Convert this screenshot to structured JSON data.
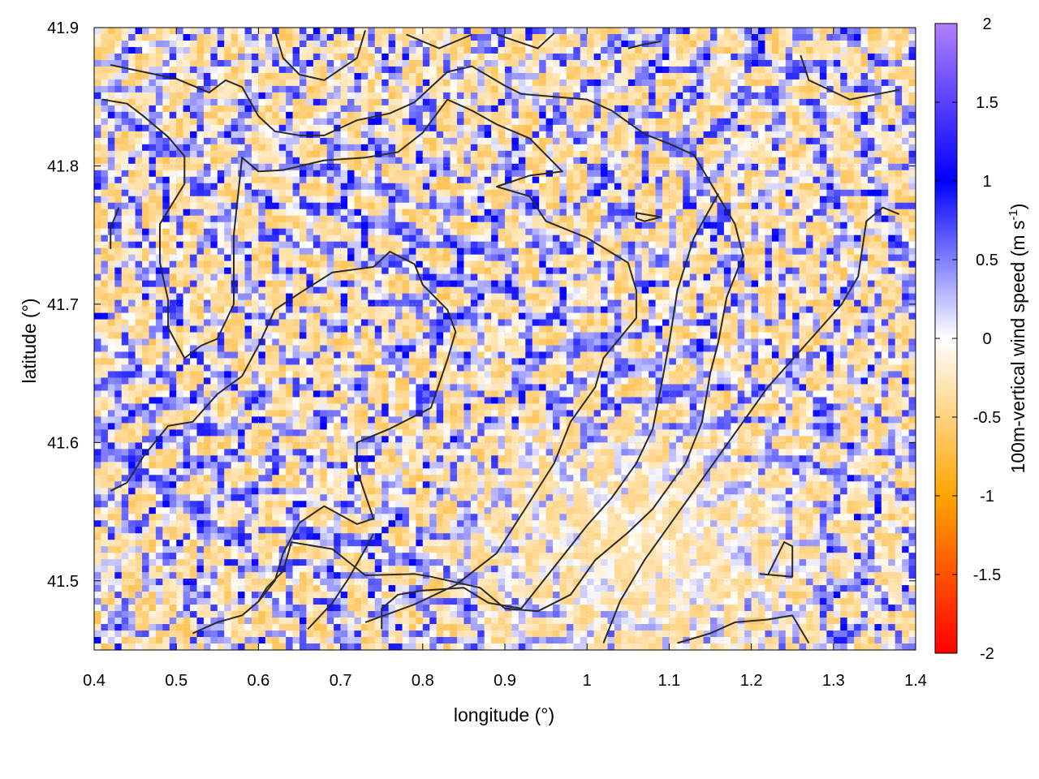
{
  "chart_data": {
    "type": "heatmap",
    "title": "",
    "xlabel": "longitude (°)",
    "ylabel": "latitude (°)",
    "xlim": [
      0.4,
      1.4
    ],
    "ylim": [
      41.45,
      41.9
    ],
    "x_ticks": [
      0.4,
      0.5,
      0.6,
      0.7,
      0.8,
      0.9,
      1.0,
      1.1,
      1.2,
      1.3,
      1.4
    ],
    "x_tick_labels": [
      "0.4",
      "0.5",
      "0.6",
      "0.7",
      "0.8",
      "0.9",
      "1",
      "1.1",
      "1.2",
      "1.3",
      "1.4"
    ],
    "y_ticks": [
      41.5,
      41.6,
      41.7,
      41.8,
      41.9
    ],
    "y_tick_labels": [
      "41.5",
      "41.6",
      "41.7",
      "41.8",
      "41.9"
    ],
    "grid": true,
    "colorbar": {
      "label_main": "100m-vertical wind speed (m s",
      "label_sup": "-1",
      "label_end": ")",
      "range": [
        -2,
        2
      ],
      "ticks": [
        2,
        1.5,
        1,
        0.5,
        0,
        -0.5,
        -1,
        -1.5,
        -2
      ],
      "tick_labels": [
        "2",
        "1.5",
        "1",
        "0.5",
        "0",
        "-0.5",
        "-1",
        "-1.5",
        "-2"
      ],
      "colors": [
        {
          "value": -2,
          "color": "#ff0000"
        },
        {
          "value": -1,
          "color": "#ffa500"
        },
        {
          "value": 0,
          "color": "#ffffff"
        },
        {
          "value": 1,
          "color": "#0000ff"
        },
        {
          "value": 2,
          "color": "#b080ff"
        }
      ]
    },
    "contours": [
      [
        [
          0.42,
          41.873
        ],
        [
          0.5,
          41.863
        ],
        [
          0.54,
          41.853
        ],
        [
          0.56,
          41.862
        ],
        [
          0.58,
          41.857
        ],
        [
          0.6,
          41.836
        ],
        [
          0.62,
          41.825
        ],
        [
          0.65,
          41.822
        ],
        [
          0.68,
          41.822
        ],
        [
          0.72,
          41.833
        ],
        [
          0.76,
          41.838
        ],
        [
          0.79,
          41.846
        ],
        [
          0.83,
          41.868
        ],
        [
          0.86,
          41.872
        ],
        [
          0.9,
          41.858
        ],
        [
          0.92,
          41.852
        ],
        [
          1.0,
          41.848
        ],
        [
          1.03,
          41.84
        ],
        [
          1.07,
          41.823
        ],
        [
          1.1,
          41.816
        ],
        [
          1.13,
          41.808
        ],
        [
          1.16,
          41.778
        ],
        [
          1.18,
          41.758
        ],
        [
          1.19,
          41.735
        ],
        [
          1.17,
          41.705
        ],
        [
          1.16,
          41.673
        ],
        [
          1.15,
          41.65
        ],
        [
          1.14,
          41.615
        ],
        [
          1.12,
          41.585
        ],
        [
          1.08,
          41.552
        ],
        [
          1.05,
          41.535
        ],
        [
          1.01,
          41.515
        ],
        [
          0.98,
          41.49
        ],
        [
          0.94,
          41.478
        ],
        [
          0.9,
          41.48
        ],
        [
          0.87,
          41.495
        ],
        [
          0.81,
          41.503
        ],
        [
          0.79,
          41.505
        ],
        [
          0.73,
          41.504
        ],
        [
          0.69,
          41.523
        ],
        [
          0.64,
          41.528
        ],
        [
          0.63,
          41.507
        ],
        [
          0.61,
          41.495
        ],
        [
          0.6,
          41.485
        ],
        [
          0.58,
          41.475
        ],
        [
          0.55,
          41.47
        ],
        [
          0.52,
          41.462
        ]
      ],
      [
        [
          0.41,
          41.848
        ],
        [
          0.44,
          41.845
        ],
        [
          0.46,
          41.836
        ],
        [
          0.49,
          41.821
        ],
        [
          0.51,
          41.807
        ],
        [
          0.51,
          41.787
        ],
        [
          0.48,
          41.758
        ],
        [
          0.48,
          41.73
        ],
        [
          0.49,
          41.703
        ],
        [
          0.49,
          41.683
        ],
        [
          0.51,
          41.661
        ],
        [
          0.53,
          41.67
        ],
        [
          0.55,
          41.675
        ],
        [
          0.57,
          41.7
        ],
        [
          0.57,
          41.75
        ],
        [
          0.58,
          41.806
        ],
        [
          0.6,
          41.796
        ],
        [
          0.63,
          41.797
        ],
        [
          0.68,
          41.804
        ],
        [
          0.73,
          41.806
        ],
        [
          0.77,
          41.81
        ],
        [
          0.8,
          41.824
        ],
        [
          0.83,
          41.848
        ],
        [
          0.86,
          41.84
        ],
        [
          0.89,
          41.83
        ],
        [
          0.93,
          41.82
        ],
        [
          0.97,
          41.796
        ],
        [
          0.93,
          41.793
        ],
        [
          0.89,
          41.785
        ],
        [
          0.93,
          41.778
        ],
        [
          0.95,
          41.76
        ],
        [
          1.0,
          41.748
        ],
        [
          1.05,
          41.73
        ],
        [
          1.06,
          41.71
        ],
        [
          1.06,
          41.69
        ],
        [
          1.02,
          41.661
        ],
        [
          1.01,
          41.64
        ],
        [
          0.98,
          41.615
        ],
        [
          0.96,
          41.585
        ],
        [
          0.93,
          41.557
        ],
        [
          0.89,
          41.52
        ],
        [
          0.84,
          41.497
        ],
        [
          0.79,
          41.483
        ],
        [
          0.73,
          41.47
        ]
      ],
      [
        [
          0.42,
          41.565
        ],
        [
          0.44,
          41.571
        ],
        [
          0.46,
          41.59
        ],
        [
          0.49,
          41.612
        ],
        [
          0.52,
          41.615
        ],
        [
          0.55,
          41.635
        ],
        [
          0.58,
          41.648
        ],
        [
          0.6,
          41.67
        ],
        [
          0.62,
          41.696
        ],
        [
          0.65,
          41.708
        ],
        [
          0.69,
          41.723
        ],
        [
          0.74,
          41.727
        ],
        [
          0.76,
          41.738
        ],
        [
          0.79,
          41.729
        ],
        [
          0.8,
          41.714
        ],
        [
          0.83,
          41.696
        ],
        [
          0.84,
          41.68
        ],
        [
          0.83,
          41.66
        ],
        [
          0.81,
          41.625
        ],
        [
          0.79,
          41.619
        ],
        [
          0.76,
          41.61
        ],
        [
          0.72,
          41.6
        ],
        [
          0.72,
          41.58
        ],
        [
          0.74,
          41.545
        ],
        [
          0.72,
          41.541
        ],
        [
          0.68,
          41.554
        ],
        [
          0.65,
          41.542
        ],
        [
          0.63,
          41.52
        ],
        [
          0.62,
          41.5
        ],
        [
          0.6,
          41.485
        ]
      ],
      [
        [
          0.66,
          41.465
        ],
        [
          0.69,
          41.484
        ],
        [
          0.71,
          41.502
        ],
        [
          0.73,
          41.523
        ],
        [
          0.74,
          41.534
        ]
      ],
      [
        [
          0.75,
          41.465
        ],
        [
          0.75,
          41.48
        ],
        [
          0.77,
          41.49
        ],
        [
          0.8,
          41.493
        ],
        [
          0.85,
          41.495
        ],
        [
          0.88,
          41.484
        ],
        [
          0.92,
          41.48
        ],
        [
          0.96,
          41.51
        ],
        [
          1.0,
          41.54
        ],
        [
          1.03,
          41.56
        ],
        [
          1.06,
          41.585
        ],
        [
          1.08,
          41.61
        ],
        [
          1.09,
          41.64
        ],
        [
          1.1,
          41.672
        ],
        [
          1.11,
          41.71
        ],
        [
          1.13,
          41.748
        ],
        [
          1.16,
          41.78
        ]
      ],
      [
        [
          1.02,
          41.455
        ],
        [
          1.04,
          41.485
        ],
        [
          1.07,
          41.515
        ],
        [
          1.1,
          41.54
        ],
        [
          1.13,
          41.565
        ],
        [
          1.16,
          41.59
        ],
        [
          1.19,
          41.615
        ],
        [
          1.22,
          41.64
        ],
        [
          1.25,
          41.66
        ],
        [
          1.28,
          41.68
        ],
        [
          1.31,
          41.7
        ],
        [
          1.33,
          41.72
        ],
        [
          1.34,
          41.76
        ],
        [
          1.36,
          41.77
        ],
        [
          1.38,
          41.765
        ]
      ],
      [
        [
          1.11,
          41.455
        ],
        [
          1.15,
          41.462
        ],
        [
          1.18,
          41.47
        ],
        [
          1.22,
          41.472
        ],
        [
          1.25,
          41.475
        ],
        [
          1.27,
          41.455
        ]
      ],
      [
        [
          1.21,
          41.505
        ],
        [
          1.25,
          41.503
        ],
        [
          1.25,
          41.525
        ],
        [
          1.24,
          41.528
        ],
        [
          1.22,
          41.504
        ]
      ],
      [
        [
          1.26,
          41.88
        ],
        [
          1.27,
          41.862
        ],
        [
          1.32,
          41.848
        ],
        [
          1.38,
          41.855
        ]
      ],
      [
        [
          0.62,
          41.898
        ],
        [
          0.63,
          41.878
        ],
        [
          0.65,
          41.866
        ],
        [
          0.68,
          41.862
        ],
        [
          0.72,
          41.878
        ],
        [
          0.73,
          41.898
        ]
      ],
      [
        [
          0.78,
          41.895
        ],
        [
          0.82,
          41.885
        ],
        [
          0.86,
          41.895
        ]
      ],
      [
        [
          0.89,
          41.895
        ],
        [
          0.94,
          41.885
        ],
        [
          0.96,
          41.896
        ]
      ],
      [
        [
          1.05,
          41.885
        ],
        [
          1.07,
          41.888
        ],
        [
          1.09,
          41.89
        ]
      ],
      [
        [
          1.06,
          41.762
        ],
        [
          1.07,
          41.76
        ],
        [
          1.09,
          41.763
        ],
        [
          1.06,
          41.766
        ],
        [
          1.06,
          41.762
        ]
      ],
      [
        [
          0.42,
          41.74
        ],
        [
          0.42,
          41.755
        ],
        [
          0.43,
          41.77
        ]
      ]
    ]
  }
}
